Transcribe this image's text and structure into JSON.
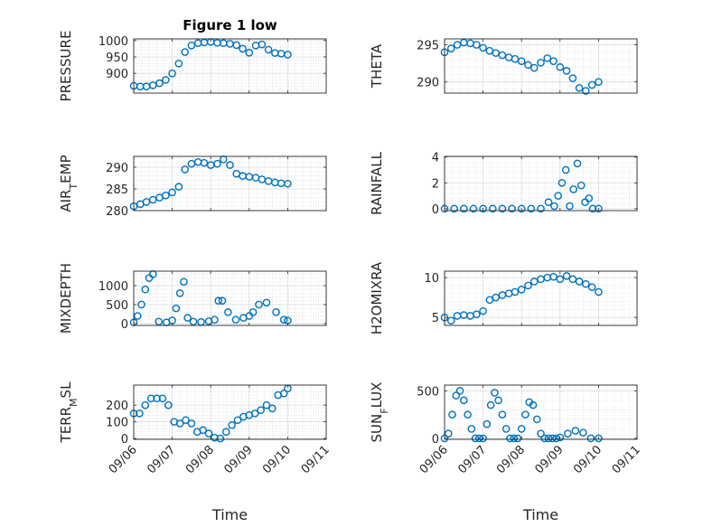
{
  "figure": {
    "title": "Figure 1 low",
    "xlabel": "Time",
    "marker_color": "#0072BD",
    "date_ticks": [
      "09/06",
      "09/07",
      "09/08",
      "09/09",
      "09/10",
      "09/11"
    ]
  },
  "chart_data": [
    {
      "type": "scatter",
      "ylabel": "PRESSURE",
      "ylim": [
        840,
        1005
      ],
      "yticks": [
        900,
        950,
        1000
      ],
      "grid": true,
      "x": [
        0.0,
        0.17,
        0.33,
        0.5,
        0.67,
        0.83,
        1.0,
        1.17,
        1.33,
        1.5,
        1.67,
        1.83,
        2.0,
        2.17,
        2.33,
        2.5,
        2.67,
        2.83,
        3.0,
        3.17,
        3.33,
        3.5,
        3.67,
        3.83,
        4.0
      ],
      "y": [
        862,
        860,
        860,
        864,
        870,
        880,
        900,
        930,
        965,
        985,
        992,
        994,
        996,
        993,
        992,
        990,
        986,
        975,
        963,
        985,
        988,
        972,
        962,
        960,
        957
      ]
    },
    {
      "type": "scatter",
      "ylabel": "THETA",
      "ylim": [
        288.5,
        295.8
      ],
      "yticks": [
        290,
        295
      ],
      "grid": true,
      "x": [
        0.0,
        0.17,
        0.33,
        0.5,
        0.67,
        0.83,
        1.0,
        1.17,
        1.33,
        1.5,
        1.67,
        1.83,
        2.0,
        2.17,
        2.33,
        2.5,
        2.67,
        2.83,
        3.0,
        3.17,
        3.33,
        3.5,
        3.67,
        3.83,
        4.0
      ],
      "y": [
        294.0,
        294.5,
        295.0,
        295.3,
        295.2,
        295.0,
        294.6,
        294.2,
        293.9,
        293.6,
        293.3,
        293.1,
        292.8,
        292.3,
        291.9,
        292.6,
        293.2,
        292.8,
        292.0,
        291.5,
        290.5,
        289.2,
        288.8,
        289.6,
        290.0
      ]
    },
    {
      "type": "scatter",
      "ylabel": "AIR_TEMP",
      "ylim": [
        280,
        292.5
      ],
      "yticks": [
        280,
        285,
        290
      ],
      "grid": true,
      "x": [
        0.0,
        0.17,
        0.33,
        0.5,
        0.67,
        0.83,
        1.0,
        1.17,
        1.33,
        1.5,
        1.67,
        1.83,
        2.0,
        2.17,
        2.33,
        2.5,
        2.67,
        2.83,
        3.0,
        3.17,
        3.33,
        3.5,
        3.67,
        3.83,
        4.0
      ],
      "y": [
        281.0,
        281.5,
        282.0,
        282.5,
        283.0,
        283.5,
        284.2,
        285.5,
        289.5,
        290.8,
        291.2,
        291.0,
        290.5,
        290.8,
        291.8,
        290.5,
        288.5,
        288.0,
        287.8,
        287.6,
        287.2,
        286.8,
        286.5,
        286.3,
        286.2
      ]
    },
    {
      "type": "scatter",
      "ylabel": "RAINFALL",
      "ylim": [
        -0.15,
        4.05
      ],
      "yticks": [
        0,
        2,
        4
      ],
      "grid": true,
      "x": [
        0.0,
        0.25,
        0.5,
        0.75,
        1.0,
        1.25,
        1.5,
        1.75,
        2.0,
        2.25,
        2.5,
        2.7,
        2.85,
        2.95,
        3.05,
        3.15,
        3.25,
        3.35,
        3.45,
        3.55,
        3.65,
        3.75,
        3.85,
        4.0
      ],
      "y": [
        0,
        0,
        0,
        0,
        0,
        0,
        0,
        0,
        0,
        0,
        0,
        0.5,
        0.2,
        1.0,
        2.0,
        3.0,
        0.2,
        1.5,
        3.5,
        1.8,
        0.5,
        0.8,
        0,
        0
      ]
    },
    {
      "type": "scatter",
      "ylabel": "MIXDEPTH",
      "ylim": [
        -50,
        1380
      ],
      "yticks": [
        0,
        500,
        1000
      ],
      "grid": true,
      "x": [
        0.0,
        0.1,
        0.2,
        0.3,
        0.4,
        0.5,
        0.65,
        0.85,
        1.0,
        1.1,
        1.2,
        1.3,
        1.4,
        1.55,
        1.75,
        1.95,
        2.1,
        2.2,
        2.3,
        2.45,
        2.65,
        2.85,
        3.0,
        3.1,
        3.25,
        3.45,
        3.7,
        3.9,
        4.0
      ],
      "y": [
        30,
        200,
        500,
        900,
        1200,
        1300,
        50,
        30,
        80,
        400,
        800,
        1100,
        150,
        50,
        40,
        60,
        100,
        600,
        600,
        300,
        100,
        150,
        200,
        300,
        500,
        550,
        300,
        100,
        80
      ]
    },
    {
      "type": "scatter",
      "ylabel": "H2OMIXRA",
      "ylim": [
        4.0,
        10.8
      ],
      "yticks": [
        5,
        10
      ],
      "grid": true,
      "x": [
        0.0,
        0.17,
        0.33,
        0.5,
        0.67,
        0.83,
        1.0,
        1.17,
        1.33,
        1.5,
        1.67,
        1.83,
        2.0,
        2.17,
        2.33,
        2.5,
        2.67,
        2.83,
        3.0,
        3.17,
        3.33,
        3.5,
        3.67,
        3.83,
        4.0
      ],
      "y": [
        5.0,
        4.6,
        5.2,
        5.3,
        5.2,
        5.4,
        5.8,
        7.2,
        7.5,
        7.8,
        8.0,
        8.2,
        8.5,
        9.0,
        9.5,
        9.8,
        10.0,
        10.1,
        9.8,
        10.2,
        9.8,
        9.5,
        9.2,
        8.8,
        8.2
      ]
    },
    {
      "type": "scatter",
      "ylabel": "TERR_MSL",
      "ylim": [
        -5,
        320
      ],
      "yticks": [
        0,
        100,
        200
      ],
      "grid": true,
      "x": [
        0.0,
        0.15,
        0.3,
        0.45,
        0.6,
        0.75,
        0.9,
        1.05,
        1.2,
        1.35,
        1.5,
        1.65,
        1.8,
        1.95,
        2.1,
        2.25,
        2.4,
        2.55,
        2.7,
        2.85,
        3.0,
        3.15,
        3.3,
        3.45,
        3.6,
        3.75,
        3.9,
        4.0
      ],
      "y": [
        150,
        150,
        200,
        240,
        240,
        240,
        200,
        100,
        90,
        110,
        90,
        40,
        50,
        30,
        5,
        0,
        40,
        80,
        110,
        130,
        140,
        150,
        170,
        200,
        180,
        260,
        270,
        300
      ]
    },
    {
      "type": "scatter",
      "ylabel": "SUN_FLUX",
      "ylim": [
        -10,
        560
      ],
      "yticks": [
        0,
        500
      ],
      "grid": true,
      "x": [
        0.0,
        0.1,
        0.2,
        0.3,
        0.4,
        0.5,
        0.6,
        0.7,
        0.8,
        0.9,
        1.0,
        1.1,
        1.2,
        1.3,
        1.4,
        1.5,
        1.6,
        1.7,
        1.8,
        1.9,
        2.0,
        2.1,
        2.2,
        2.3,
        2.4,
        2.5,
        2.6,
        2.7,
        2.8,
        2.9,
        3.0,
        3.2,
        3.4,
        3.6,
        3.8,
        4.0
      ],
      "y": [
        0,
        50,
        250,
        450,
        500,
        400,
        250,
        100,
        0,
        0,
        0,
        150,
        350,
        480,
        400,
        250,
        100,
        0,
        0,
        0,
        100,
        250,
        380,
        350,
        200,
        50,
        0,
        0,
        0,
        0,
        10,
        50,
        80,
        60,
        0,
        0
      ]
    }
  ]
}
